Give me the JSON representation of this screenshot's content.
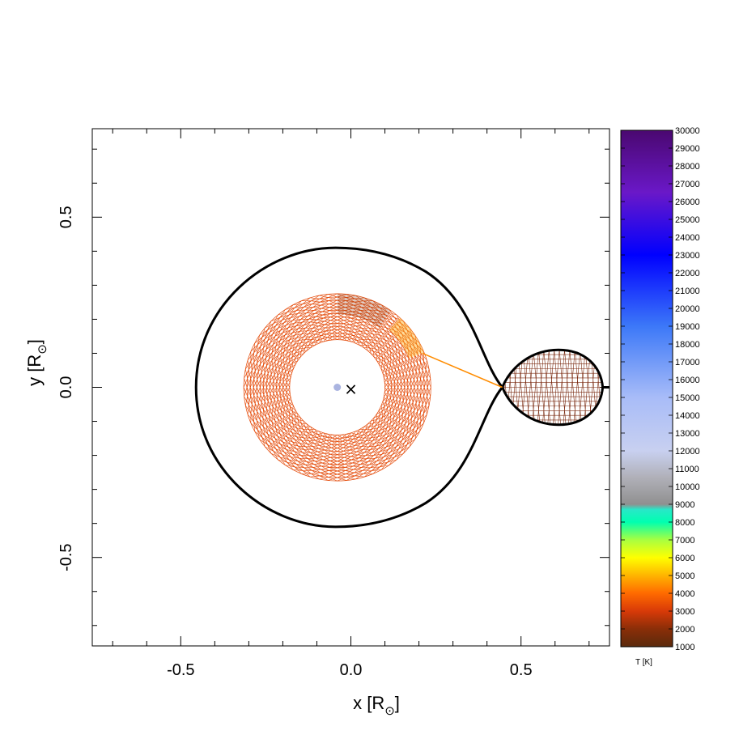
{
  "chart_data": {
    "type": "scatter",
    "xlabel": "x [R",
    "ylabel": "y [R",
    "label_suffix": "]",
    "label_subscript": "⊙",
    "xlim": [
      -0.76,
      0.76
    ],
    "ylim": [
      -0.76,
      0.76
    ],
    "x_ticks": [
      "-0.5",
      "0.0",
      "0.5"
    ],
    "x_tick_values": [
      -0.5,
      0.0,
      0.5
    ],
    "y_ticks": [
      "-0.5",
      "0.0",
      "0.5"
    ],
    "y_tick_values": [
      -0.5,
      0.0,
      0.5
    ],
    "minor_tick_step": 0.1,
    "roche_lobe": {
      "color": "#000000",
      "inner_lagrange_x": 0.445,
      "left_x": -0.455,
      "half_height": 0.41,
      "center_x": -0.045
    },
    "disk": {
      "center_x": -0.04,
      "center_y": 0.0,
      "inner_radius": 0.14,
      "outer_radius": 0.275,
      "rings": 14,
      "spokes": 64,
      "color": "#d0501a",
      "hotspot_color": "#ffb020"
    },
    "donor": {
      "center_x": 0.61,
      "center_y": 0.0,
      "l1_x": 0.445,
      "right_x": 0.75,
      "half_height": 0.11,
      "color": "#7a2a10"
    },
    "stream": {
      "from": [
        0.21,
        0.1
      ],
      "to": [
        0.445,
        0.0
      ],
      "color": "#ff8c00"
    },
    "primary": {
      "x": -0.04,
      "y": 0.0,
      "color": "#aab4e0"
    },
    "center_of_mass": {
      "x": 0.0,
      "y": -0.005,
      "symbol": "×"
    },
    "colorbar": {
      "title": "T [K]",
      "min": 1000,
      "max": 30000,
      "labels": [
        "1000",
        "2000",
        "3000",
        "4000",
        "5000",
        "6000",
        "7000",
        "8000",
        "9000",
        "10000",
        "11000",
        "12000",
        "13000",
        "14000",
        "15000",
        "16000",
        "17000",
        "18000",
        "19000",
        "20000",
        "21000",
        "22000",
        "23000",
        "24000",
        "25000",
        "26000",
        "27000",
        "28000",
        "29000",
        "30000"
      ],
      "stops": [
        {
          "t": 1000,
          "color": "#5a2a0c"
        },
        {
          "t": 2000,
          "color": "#8a2e08"
        },
        {
          "t": 3000,
          "color": "#d83a08"
        },
        {
          "t": 4000,
          "color": "#ff6a00"
        },
        {
          "t": 5000,
          "color": "#ffb400"
        },
        {
          "t": 6000,
          "color": "#ffff00"
        },
        {
          "t": 7000,
          "color": "#a8ff40"
        },
        {
          "t": 8000,
          "color": "#00ffb0"
        },
        {
          "t": 8700,
          "color": "#28e8c8"
        },
        {
          "t": 9000,
          "color": "#909090"
        },
        {
          "t": 10500,
          "color": "#b0b0b8"
        },
        {
          "t": 12000,
          "color": "#c8d0f0"
        },
        {
          "t": 15000,
          "color": "#a8bcf8"
        },
        {
          "t": 19000,
          "color": "#3c78f8"
        },
        {
          "t": 23000,
          "color": "#0000ff"
        },
        {
          "t": 26500,
          "color": "#6a18c8"
        },
        {
          "t": 30000,
          "color": "#4a0870"
        }
      ]
    }
  }
}
